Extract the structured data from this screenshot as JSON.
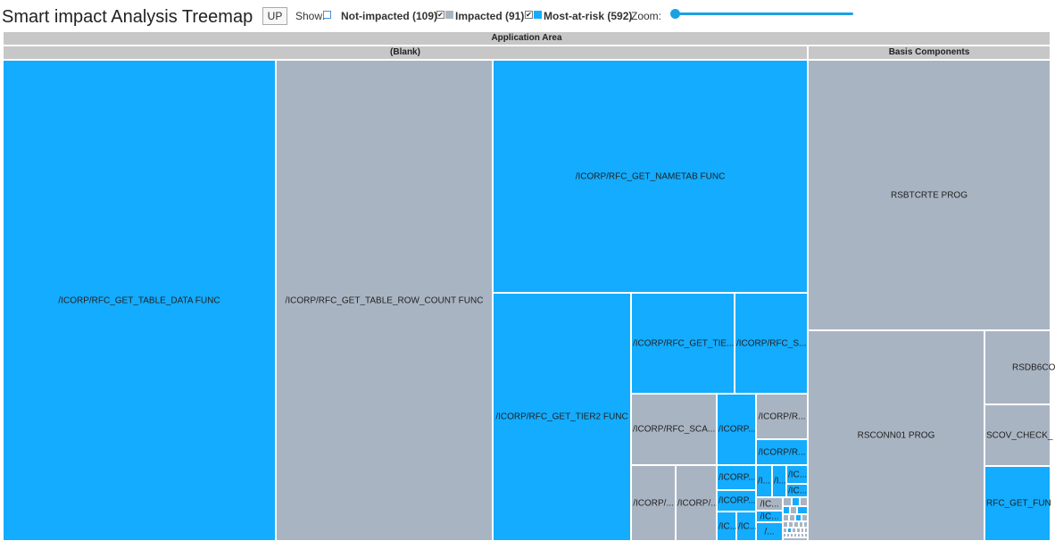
{
  "title": "Smart impact Analysis Treemap",
  "toolbar": {
    "up_label": "UP",
    "show_label": "Show:",
    "not_impacted_label": "Not-impacted (109)",
    "impacted_label": "Impacted (91)",
    "most_at_risk_label": "Most-at-risk (592)",
    "zoom_label": "Zoom:",
    "zoom_value": 0,
    "check_mark": "✔",
    "not_impacted_checked": false,
    "impacted_checked": true,
    "most_at_risk_checked": true
  },
  "colors": {
    "not_impacted": "#ffffff",
    "impacted": "#a9b4c3",
    "most_at_risk": "#13acff",
    "header": "#c7c7c7"
  },
  "treemap": {
    "root_label": "Application Area",
    "group_blank_label": "(Blank)",
    "group_basis_label": "Basis Components",
    "cells": [
      "/ICORP/RFC_GET_TABLE_DATA FUNC",
      "/ICORP/RFC_GET_TABLE_ROW_COUNT FUNC",
      "/ICORP/RFC_GET_NAMETAB FUNC",
      "/ICORP/RFC_GET_TIER2 FUNC",
      "/ICORP/RFC_GET_TIE...",
      "/ICORP/RFC_S...",
      "/ICORP/RFC_SCA...",
      "/ICORP...",
      "/ICORP/R...",
      "/ICORP/R...",
      "/ICORP/...",
      "/ICORP/...",
      "/ICORP...",
      "/ICORP...",
      "/I...",
      "/I...",
      "/IC...",
      "/IC...",
      "/IC...",
      "/IC...",
      "/IC...",
      "/IC...",
      "/...",
      "RSBTCRTE PROG",
      "RSCONN01 PROG",
      "RSDB6CO",
      "SCOV_CHECK_",
      "RFC_GET_FUN"
    ]
  }
}
